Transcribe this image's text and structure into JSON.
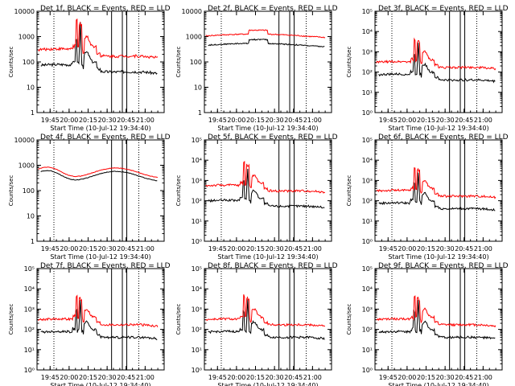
{
  "chart_data": [
    {
      "type": "line",
      "title": "Det 1f, BLACK = Events, RED = LLD",
      "xlabel": "Start Time (10-Jul-12 19:34:40)",
      "ylabel": "Counts/sec",
      "yscale": "log",
      "ylim": [
        1,
        10000
      ],
      "y_ticks": [
        "1",
        "10",
        "100",
        "1000",
        "10000"
      ],
      "x_ticks": [
        "19:45",
        "20:00",
        "20:15",
        "20:30",
        "20:45",
        "21:00"
      ],
      "profile": "flare",
      "series": [
        {
          "name": "",
          "color": "#000000",
          "level": 60
        },
        {
          "name": "",
          "color": "#ff0000",
          "level": 250
        }
      ]
    },
    {
      "type": "line",
      "title": "Det 2f, BLACK = Events, RED = LLD",
      "xlabel": "Start Time (10-Jul-12 19:34:40)",
      "ylabel": "Counts/sec",
      "yscale": "log",
      "ylim": [
        1,
        10000
      ],
      "y_ticks": [
        "1",
        "10",
        "100",
        "1000",
        "10000"
      ],
      "x_ticks": [
        "19:45",
        "20:00",
        "20:15",
        "20:30",
        "20:45",
        "21:00"
      ],
      "profile": "flat",
      "series": [
        {
          "name": "",
          "color": "#000000",
          "level": 450
        },
        {
          "name": "",
          "color": "#ff0000",
          "level": 1050
        }
      ]
    },
    {
      "type": "line",
      "title": "Det 3f, BLACK = Events, RED = LLD",
      "xlabel": "Start Time (10-Jul-12 19:34:40)",
      "ylabel": "Counts/sec",
      "yscale": "log",
      "ylim": [
        1,
        100000
      ],
      "y_ticks": [
        "10⁰",
        "10¹",
        "10²",
        "10³",
        "10⁴",
        "10⁵"
      ],
      "x_ticks": [
        "19:45",
        "20:00",
        "20:15",
        "20:30",
        "20:45",
        "21:00"
      ],
      "profile": "flare",
      "series": [
        {
          "name": "",
          "color": "#000000",
          "level": 60
        },
        {
          "name": "",
          "color": "#ff0000",
          "level": 250
        }
      ]
    },
    {
      "type": "line",
      "title": "Det 4f, BLACK = Events, RED = LLD",
      "xlabel": "Start Time (10-Jul-12 19:34:40)",
      "ylabel": "Counts/sec",
      "yscale": "log",
      "ylim": [
        1,
        10000
      ],
      "y_ticks": [
        "1",
        "10",
        "100",
        "1000",
        "10000"
      ],
      "x_ticks": [
        "19:45",
        "20:00",
        "20:15",
        "20:30",
        "20:45",
        "21:00"
      ],
      "profile": "wave",
      "series": [
        {
          "name": "",
          "color": "#000000",
          "level": 220
        },
        {
          "name": "",
          "color": "#ff0000",
          "level": 300
        }
      ]
    },
    {
      "type": "line",
      "title": "Det 5f, BLACK = Events, RED = LLD",
      "xlabel": "Start Time (10-Jul-12 19:34:40)",
      "ylabel": "Counts/sec",
      "yscale": "log",
      "ylim": [
        1,
        100000
      ],
      "y_ticks": [
        "10⁰",
        "10¹",
        "10²",
        "10³",
        "10⁴",
        "10⁵"
      ],
      "x_ticks": [
        "19:45",
        "20:00",
        "20:15",
        "20:30",
        "20:45",
        "21:00"
      ],
      "profile": "flare",
      "series": [
        {
          "name": "",
          "color": "#000000",
          "level": 80
        },
        {
          "name": "",
          "color": "#ff0000",
          "level": 450
        }
      ]
    },
    {
      "type": "line",
      "title": "Det 6f, BLACK = Events, RED = LLD",
      "xlabel": "Start Time (10-Jul-12 19:34:40)",
      "ylabel": "Counts/sec",
      "yscale": "log",
      "ylim": [
        1,
        100000
      ],
      "y_ticks": [
        "10⁰",
        "10¹",
        "10²",
        "10³",
        "10⁴",
        "10⁵"
      ],
      "x_ticks": [
        "19:45",
        "20:00",
        "20:15",
        "20:30",
        "20:45",
        "21:00"
      ],
      "profile": "flare",
      "series": [
        {
          "name": "",
          "color": "#000000",
          "level": 60
        },
        {
          "name": "",
          "color": "#ff0000",
          "level": 250
        }
      ]
    },
    {
      "type": "line",
      "title": "Det 7f, BLACK = Events, RED = LLD",
      "xlabel": "Start Time (10-Jul-12 19:34:40)",
      "ylabel": "Counts/sec",
      "yscale": "log",
      "ylim": [
        1,
        100000
      ],
      "y_ticks": [
        "10⁰",
        "10¹",
        "10²",
        "10³",
        "10⁴",
        "10⁵"
      ],
      "x_ticks": [
        "19:45",
        "20:00",
        "20:15",
        "20:30",
        "20:45",
        "21:00"
      ],
      "profile": "flare",
      "series": [
        {
          "name": "",
          "color": "#000000",
          "level": 60
        },
        {
          "name": "",
          "color": "#ff0000",
          "level": 250
        }
      ]
    },
    {
      "type": "line",
      "title": "Det 8f, BLACK = Events, RED = LLD",
      "xlabel": "Start Time (10-Jul-12 19:34:40)",
      "ylabel": "Counts/sec",
      "yscale": "log",
      "ylim": [
        1,
        100000
      ],
      "y_ticks": [
        "10⁰",
        "10¹",
        "10²",
        "10³",
        "10⁴",
        "10⁵"
      ],
      "x_ticks": [
        "19:45",
        "20:00",
        "20:15",
        "20:30",
        "20:45",
        "21:00"
      ],
      "profile": "flare",
      "series": [
        {
          "name": "",
          "color": "#000000",
          "level": 60
        },
        {
          "name": "",
          "color": "#ff0000",
          "level": 250
        }
      ]
    },
    {
      "type": "line",
      "title": "Det 9f, BLACK = Events, RED = LLD",
      "xlabel": "Start Time (10-Jul-12 19:34:40)",
      "ylabel": "Counts/sec",
      "yscale": "log",
      "ylim": [
        1,
        100000
      ],
      "y_ticks": [
        "10⁰",
        "10¹",
        "10²",
        "10³",
        "10⁴",
        "10⁵"
      ],
      "x_ticks": [
        "19:45",
        "20:00",
        "20:15",
        "20:30",
        "20:45",
        "21:00"
      ],
      "profile": "flare",
      "series": [
        {
          "name": "",
          "color": "#000000",
          "level": 60
        },
        {
          "name": "",
          "color": "#ff0000",
          "level": 250
        }
      ]
    }
  ]
}
